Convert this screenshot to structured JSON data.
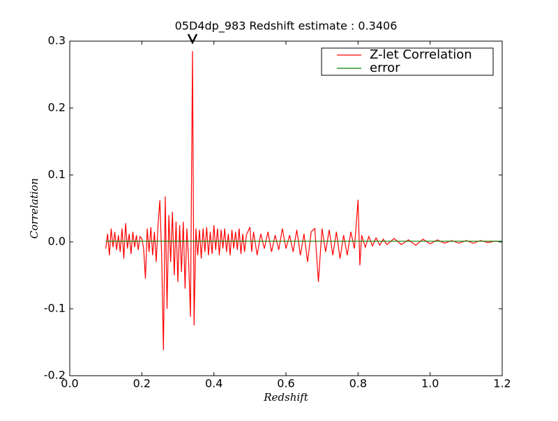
{
  "chart_data": {
    "type": "line",
    "title": "05D4dp_983 Redshift estimate : 0.3406",
    "xlabel": "Redshift",
    "ylabel": "Correlation",
    "xlim": [
      0,
      1.2
    ],
    "ylim": [
      -0.2,
      0.3
    ],
    "xticks": [
      {
        "value": 0,
        "label": "0.0"
      },
      0.2,
      0.4,
      0.6,
      0.8,
      {
        "value": 1,
        "label": "1.0"
      },
      1.2
    ],
    "yticks": [
      -0.2,
      -0.1,
      {
        "value": 0,
        "label": "0.0"
      },
      0.1,
      0.2,
      0.3
    ],
    "legend": "upper right",
    "marker": {
      "x": 0.3406,
      "y": 0.3
    },
    "series": [
      {
        "name": "Z-let Correlation",
        "color": "#ff0000",
        "x": [
          0.1,
          0.105,
          0.11,
          0.115,
          0.12,
          0.125,
          0.13,
          0.135,
          0.14,
          0.145,
          0.15,
          0.155,
          0.16,
          0.165,
          0.17,
          0.175,
          0.18,
          0.185,
          0.19,
          0.195,
          0.2,
          0.205,
          0.21,
          0.215,
          0.22,
          0.225,
          0.23,
          0.235,
          0.24,
          0.245,
          0.25,
          0.255,
          0.26,
          0.265,
          0.27,
          0.275,
          0.28,
          0.285,
          0.29,
          0.295,
          0.3,
          0.305,
          0.31,
          0.315,
          0.32,
          0.325,
          0.33,
          0.335,
          0.3406,
          0.345,
          0.35,
          0.355,
          0.36,
          0.365,
          0.37,
          0.375,
          0.38,
          0.385,
          0.39,
          0.395,
          0.4,
          0.405,
          0.41,
          0.415,
          0.42,
          0.425,
          0.43,
          0.435,
          0.44,
          0.445,
          0.45,
          0.455,
          0.46,
          0.465,
          0.47,
          0.475,
          0.48,
          0.485,
          0.49,
          0.5,
          0.505,
          0.51,
          0.52,
          0.53,
          0.54,
          0.55,
          0.56,
          0.57,
          0.58,
          0.59,
          0.6,
          0.61,
          0.62,
          0.63,
          0.64,
          0.65,
          0.66,
          0.67,
          0.68,
          0.69,
          0.7,
          0.71,
          0.72,
          0.73,
          0.74,
          0.75,
          0.76,
          0.77,
          0.78,
          0.79,
          0.8,
          0.805,
          0.81,
          0.82,
          0.83,
          0.84,
          0.85,
          0.86,
          0.87,
          0.88,
          0.9,
          0.92,
          0.94,
          0.96,
          0.98,
          1.0,
          1.02,
          1.04,
          1.06,
          1.08,
          1.1,
          1.12,
          1.14,
          1.16,
          1.18,
          1.2
        ],
        "values": [
          -0.01,
          0.012,
          -0.02,
          0.02,
          -0.008,
          0.015,
          -0.012,
          0.01,
          -0.015,
          0.02,
          -0.025,
          0.028,
          -0.01,
          0.012,
          -0.018,
          0.015,
          -0.008,
          0.01,
          -0.012,
          0.008,
          0.005,
          -0.01,
          -0.055,
          0.02,
          -0.015,
          0.022,
          -0.02,
          0.015,
          -0.03,
          0.025,
          0.062,
          -0.02,
          -0.162,
          0.068,
          -0.1,
          0.04,
          -0.03,
          0.045,
          -0.05,
          0.03,
          -0.06,
          0.025,
          -0.045,
          0.03,
          -0.07,
          0.02,
          -0.03,
          -0.112,
          0.285,
          -0.125,
          0.02,
          -0.02,
          0.018,
          -0.025,
          0.02,
          -0.015,
          0.022,
          -0.02,
          0.015,
          -0.018,
          0.025,
          -0.012,
          0.02,
          -0.02,
          0.018,
          -0.01,
          0.02,
          -0.015,
          0.012,
          -0.02,
          0.018,
          -0.01,
          0.015,
          -0.012,
          0.02,
          -0.018,
          0.012,
          -0.015,
          0.01,
          0.022,
          -0.015,
          0.015,
          -0.02,
          0.012,
          -0.01,
          0.015,
          -0.015,
          0.01,
          -0.012,
          0.02,
          -0.01,
          0.01,
          -0.015,
          0.018,
          -0.02,
          0.012,
          -0.03,
          0.015,
          0.02,
          -0.06,
          0.02,
          -0.015,
          0.018,
          -0.02,
          0.015,
          -0.025,
          0.01,
          -0.02,
          0.015,
          -0.01,
          0.063,
          -0.035,
          0.01,
          -0.008,
          0.008,
          -0.006,
          0.006,
          -0.005,
          0.004,
          -0.004,
          0.005,
          -0.004,
          0.003,
          -0.005,
          0.004,
          -0.003,
          0.003,
          -0.002,
          0.002,
          -0.002,
          0.002,
          -0.002,
          0.002,
          -0.001,
          0.001,
          0
        ]
      },
      {
        "name": "error",
        "color": "#008000",
        "x": [
          0.1,
          1.2
        ],
        "values": [
          0.001,
          0.001
        ]
      }
    ]
  }
}
